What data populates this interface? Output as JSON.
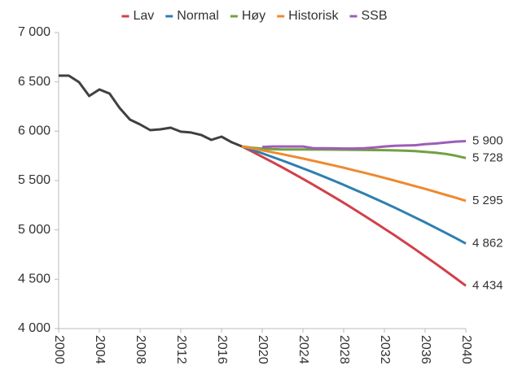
{
  "chart_data": {
    "type": "line",
    "x": [
      2000,
      2001,
      2002,
      2003,
      2004,
      2005,
      2006,
      2007,
      2008,
      2009,
      2010,
      2011,
      2012,
      2013,
      2014,
      2015,
      2016,
      2017,
      2018,
      2019,
      2020,
      2021,
      2022,
      2023,
      2024,
      2025,
      2026,
      2027,
      2028,
      2029,
      2030,
      2031,
      2032,
      2033,
      2034,
      2035,
      2036,
      2037,
      2038,
      2039,
      2040
    ],
    "xlim": [
      2000,
      2040
    ],
    "xticks": [
      2000,
      2004,
      2008,
      2012,
      2016,
      2020,
      2024,
      2028,
      2032,
      2036,
      2040
    ],
    "ylim": [
      4000,
      7000
    ],
    "yticks": [
      {
        "value": 4000,
        "label": "4 000"
      },
      {
        "value": 4500,
        "label": "4 500"
      },
      {
        "value": 5000,
        "label": "5 000"
      },
      {
        "value": 5500,
        "label": "5 500"
      },
      {
        "value": 6000,
        "label": "6 000"
      },
      {
        "value": 6500,
        "label": "6 500"
      },
      {
        "value": 7000,
        "label": "7 000"
      }
    ],
    "grid": false,
    "legend": "top",
    "series": [
      {
        "color": "#404040",
        "values": [
          6563,
          6563,
          6497,
          6357,
          6423,
          6382,
          6234,
          6118,
          6069,
          6011,
          6019,
          6036,
          5995,
          5987,
          5962,
          5912,
          5945,
          5888,
          5846,
          null,
          null,
          null,
          null,
          null,
          null,
          null,
          null,
          null,
          null,
          null,
          null,
          null,
          null,
          null,
          null,
          null,
          null,
          null,
          null,
          null,
          null
        ]
      },
      {
        "name": "Lav",
        "color": "#d1404a",
        "values": [
          null,
          null,
          null,
          null,
          null,
          null,
          null,
          null,
          null,
          null,
          null,
          null,
          null,
          null,
          null,
          null,
          null,
          null,
          5846,
          5794,
          5741,
          5687,
          5632,
          5575,
          5517,
          5458,
          5398,
          5337,
          5275,
          5211,
          5146,
          5080,
          5013,
          4945,
          4876,
          4805,
          4733,
          4661,
          4586,
          4511,
          4434
        ],
        "value_labels": [
          null,
          null,
          null,
          null,
          null,
          null,
          null,
          null,
          null,
          null,
          null,
          null,
          null,
          null,
          null,
          null,
          null,
          null,
          null,
          null,
          null,
          null,
          null,
          null,
          null,
          null,
          null,
          null,
          null,
          null,
          null,
          null,
          null,
          null,
          null,
          null,
          null,
          null,
          null,
          null,
          "4 434"
        ]
      },
      {
        "name": "Normal",
        "color": "#2e7fb0",
        "values": [
          null,
          null,
          null,
          null,
          null,
          null,
          null,
          null,
          null,
          null,
          null,
          null,
          null,
          null,
          null,
          null,
          null,
          null,
          5846,
          5811,
          5776,
          5739,
          5702,
          5663,
          5624,
          5584,
          5542,
          5500,
          5457,
          5412,
          5367,
          5321,
          5274,
          5226,
          5177,
          5127,
          5076,
          5024,
          4971,
          4917,
          4862
        ],
        "value_labels": [
          null,
          null,
          null,
          null,
          null,
          null,
          null,
          null,
          null,
          null,
          null,
          null,
          null,
          null,
          null,
          null,
          null,
          null,
          null,
          null,
          null,
          null,
          null,
          null,
          null,
          null,
          null,
          null,
          null,
          null,
          null,
          null,
          null,
          null,
          null,
          null,
          null,
          null,
          null,
          null,
          "4 862"
        ]
      },
      {
        "name": "Høy",
        "color": "#72a042",
        "values": [
          null,
          null,
          null,
          null,
          null,
          null,
          null,
          null,
          null,
          null,
          null,
          null,
          null,
          null,
          null,
          null,
          null,
          null,
          5846,
          5833,
          5823,
          5818,
          5816,
          5815,
          5815,
          5814,
          5814,
          5813,
          5812,
          5811,
          5810,
          5809,
          5808,
          5806,
          5803,
          5798,
          5791,
          5782,
          5770,
          5752,
          5728
        ],
        "value_labels": [
          null,
          null,
          null,
          null,
          null,
          null,
          null,
          null,
          null,
          null,
          null,
          null,
          null,
          null,
          null,
          null,
          null,
          null,
          null,
          null,
          null,
          null,
          null,
          null,
          null,
          null,
          null,
          null,
          null,
          null,
          null,
          null,
          null,
          null,
          null,
          null,
          null,
          null,
          null,
          null,
          "5 728"
        ]
      },
      {
        "name": "Historisk",
        "color": "#ee8a2f",
        "values": [
          null,
          null,
          null,
          null,
          null,
          null,
          null,
          null,
          null,
          null,
          null,
          null,
          null,
          null,
          null,
          null,
          null,
          null,
          5846,
          5827,
          5807,
          5787,
          5766,
          5745,
          5723,
          5700,
          5677,
          5654,
          5630,
          5605,
          5580,
          5554,
          5527,
          5500,
          5472,
          5444,
          5416,
          5386,
          5356,
          5326,
          5295
        ],
        "value_labels": [
          null,
          null,
          null,
          null,
          null,
          null,
          null,
          null,
          null,
          null,
          null,
          null,
          null,
          null,
          null,
          null,
          null,
          null,
          null,
          null,
          null,
          null,
          null,
          null,
          null,
          null,
          null,
          null,
          null,
          null,
          null,
          null,
          null,
          null,
          null,
          null,
          null,
          null,
          null,
          null,
          "5 295"
        ]
      },
      {
        "name": "SSB",
        "color": "#9d5db8",
        "values": [
          null,
          null,
          null,
          null,
          null,
          null,
          null,
          null,
          null,
          null,
          null,
          null,
          null,
          null,
          null,
          null,
          null,
          null,
          null,
          null,
          5840,
          5845,
          5845,
          5845,
          5845,
          5828,
          5828,
          5826,
          5825,
          5825,
          5828,
          5835,
          5845,
          5852,
          5855,
          5858,
          5868,
          5875,
          5885,
          5895,
          5900
        ],
        "value_labels": [
          null,
          null,
          null,
          null,
          null,
          null,
          null,
          null,
          null,
          null,
          null,
          null,
          null,
          null,
          null,
          null,
          null,
          null,
          null,
          null,
          null,
          null,
          null,
          null,
          null,
          null,
          null,
          null,
          null,
          null,
          null,
          null,
          null,
          null,
          null,
          null,
          null,
          null,
          null,
          null,
          "5 900"
        ]
      }
    ]
  }
}
